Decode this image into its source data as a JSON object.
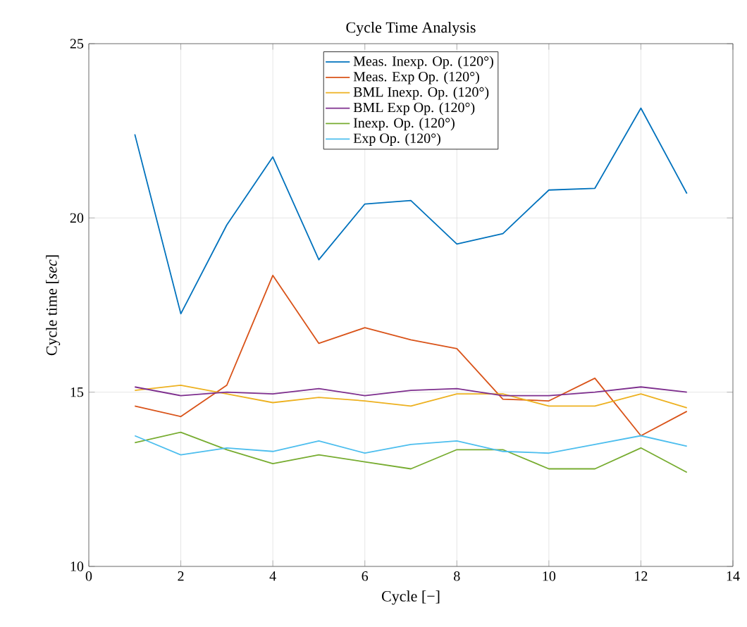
{
  "chart_data": {
    "type": "line",
    "title": "Cycle Time Analysis",
    "xlabel": "Cycle [−]",
    "ylabel": "Cycle time [*sec*]",
    "x": [
      1,
      2,
      3,
      4,
      5,
      6,
      7,
      8,
      9,
      10,
      11,
      12,
      13
    ],
    "xlim": [
      0,
      14
    ],
    "xticks": [
      0,
      2,
      4,
      6,
      8,
      10,
      12,
      14
    ],
    "ylim": [
      10,
      25
    ],
    "yticks": [
      10,
      15,
      20,
      25
    ],
    "grid": true,
    "legend": "top",
    "line_style": "solid",
    "marker": "none",
    "series": [
      {
        "name": "Meas. Inexp. Op. (120°)",
        "color": "#0072bd",
        "values": [
          22.4,
          17.25,
          19.8,
          21.75,
          18.8,
          20.4,
          20.5,
          19.25,
          19.55,
          20.8,
          20.85,
          23.15,
          20.7
        ]
      },
      {
        "name": "Meas. Exp Op. (120°)",
        "color": "#d95319",
        "values": [
          14.6,
          14.3,
          15.2,
          18.35,
          16.4,
          16.85,
          16.5,
          16.25,
          14.8,
          14.75,
          15.4,
          13.75,
          14.45
        ]
      },
      {
        "name": "BML Inexp. Op. (120°)",
        "color": "#edb120",
        "values": [
          15.05,
          15.2,
          14.95,
          14.7,
          14.85,
          14.75,
          14.6,
          14.95,
          14.95,
          14.6,
          14.6,
          14.95,
          14.55
        ]
      },
      {
        "name": "BML Exp Op. (120°)",
        "color": "#7e2f8e",
        "values": [
          15.15,
          14.9,
          15.0,
          14.95,
          15.1,
          14.9,
          15.05,
          15.1,
          14.9,
          14.9,
          15.0,
          15.15,
          15.0
        ]
      },
      {
        "name": "Inexp. Op. (120°)",
        "color": "#77ac30",
        "values": [
          13.55,
          13.85,
          13.35,
          12.95,
          13.2,
          13.0,
          12.8,
          13.35,
          13.35,
          12.8,
          12.8,
          13.4,
          12.7
        ]
      },
      {
        "name": "Exp Op. (120°)",
        "color": "#4dbeee",
        "values": [
          13.75,
          13.2,
          13.4,
          13.3,
          13.6,
          13.25,
          13.5,
          13.6,
          13.3,
          13.25,
          13.5,
          13.75,
          13.45
        ]
      }
    ]
  }
}
